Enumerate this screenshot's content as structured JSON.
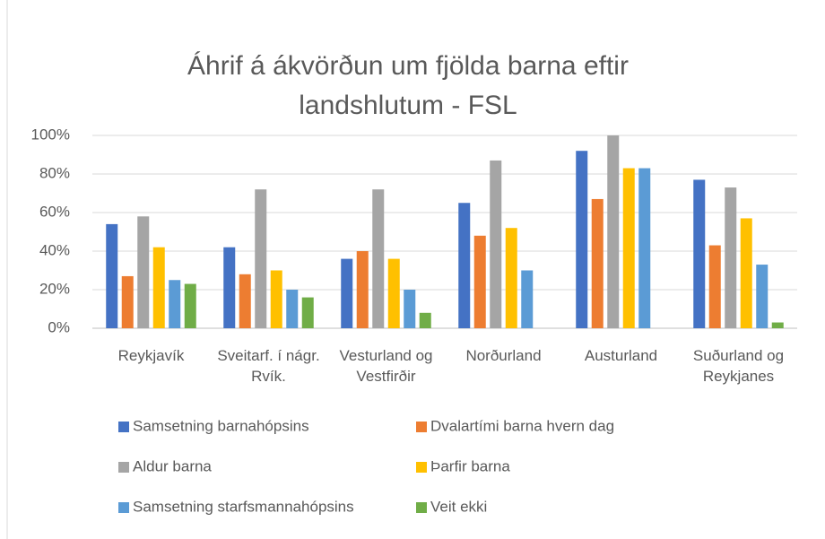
{
  "chart_data": {
    "type": "bar",
    "title": "Áhrif á ákvörðun um fjölda barna eftir landshlutum - FSL",
    "categories": [
      "Reykjavík",
      "Sveitarf. í nágr. Rvík.",
      "Vesturland og Vestfirðir",
      "Norðurland",
      "Austurland",
      "Suðurland og Reykjanes"
    ],
    "series": [
      {
        "name": "Samsetning barnahópsins",
        "color": "#4472c4",
        "values": [
          54,
          42,
          36,
          65,
          92,
          77
        ]
      },
      {
        "name": "Dvalartími barna hvern dag",
        "color": "#ed7d31",
        "values": [
          27,
          28,
          40,
          48,
          67,
          43
        ]
      },
      {
        "name": "Aldur barna",
        "color": "#a5a5a5",
        "values": [
          58,
          72,
          72,
          87,
          100,
          73
        ]
      },
      {
        "name": "Þarfir barna",
        "color": "#ffc000",
        "values": [
          42,
          30,
          36,
          52,
          83,
          57
        ]
      },
      {
        "name": "Samsetning starfsmannahópsins",
        "color": "#5b9bd5",
        "values": [
          25,
          20,
          20,
          30,
          83,
          33
        ]
      },
      {
        "name": "Veit ekki",
        "color": "#70ad47",
        "values": [
          23,
          16,
          8,
          0,
          0,
          3
        ]
      }
    ],
    "ylim": [
      0,
      100
    ],
    "yticks": [
      {
        "value": 0,
        "label": "0%"
      },
      {
        "value": 20,
        "label": "20%"
      },
      {
        "value": 40,
        "label": "40%"
      },
      {
        "value": 60,
        "label": "60%"
      },
      {
        "value": 80,
        "label": "80%"
      },
      {
        "value": 100,
        "label": "100%"
      }
    ],
    "grid": true,
    "legend": "bottom"
  }
}
